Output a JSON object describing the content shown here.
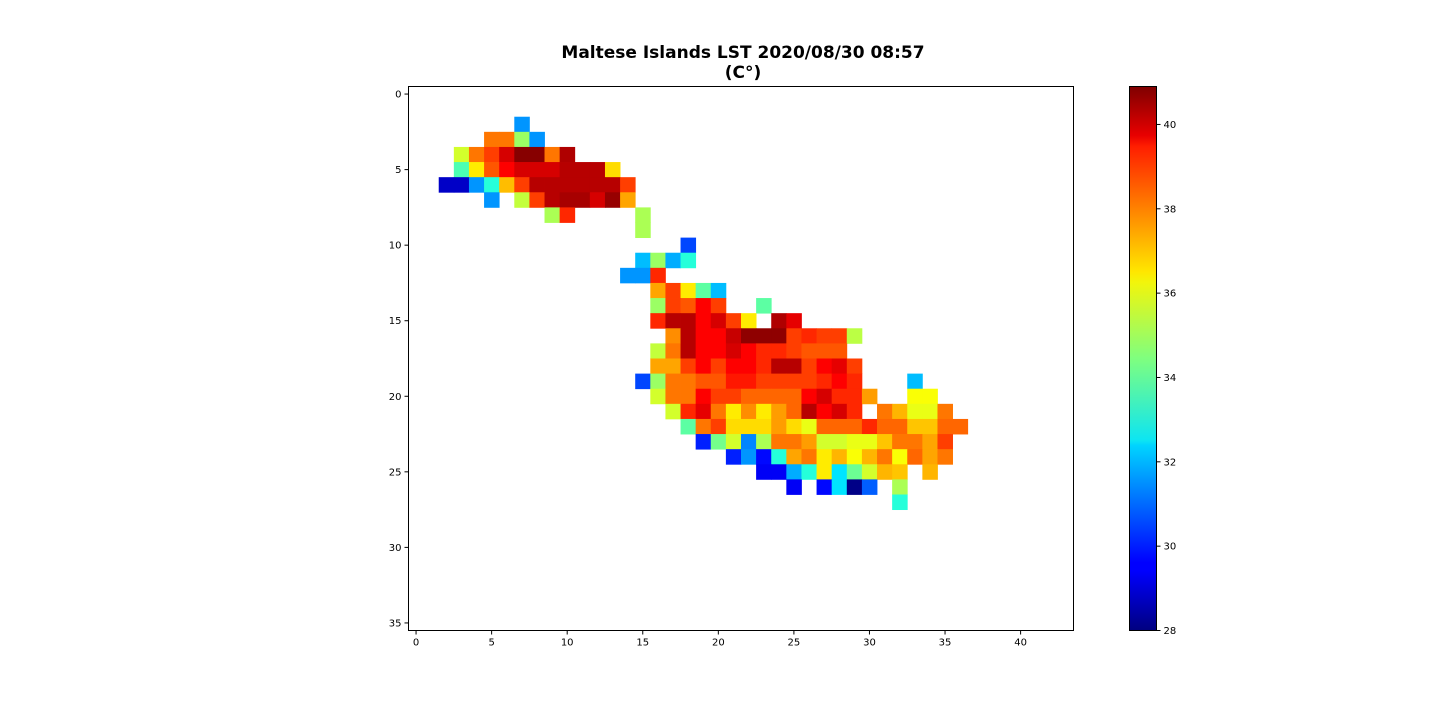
{
  "chart_data": {
    "type": "heatmap",
    "title_line1": "Maltese Islands LST 2020/08/30 08:57",
    "title_line2": "(C°)",
    "xlabel": "",
    "ylabel": "",
    "xlim": [
      -0.5,
      43.5
    ],
    "ylim": [
      35.5,
      -0.5
    ],
    "x_ticks": [
      0,
      5,
      10,
      15,
      20,
      25,
      30,
      35,
      40
    ],
    "y_ticks": [
      0,
      5,
      10,
      15,
      20,
      25,
      30,
      35
    ],
    "colormap": "jet",
    "colorbar": {
      "min": 28.0,
      "max": 40.9,
      "ticks": [
        28,
        30,
        32,
        34,
        36,
        38,
        40
      ]
    },
    "grid_rows": [
      {
        "y": 2,
        "x0": 7,
        "values": [
          31.5
        ]
      },
      {
        "y": 3,
        "x0": 5,
        "values": [
          37.8,
          37.8,
          34.8,
          31.5
        ]
      },
      {
        "y": 4,
        "x0": 3,
        "values": [
          35.5,
          37.8,
          38.5,
          39.8,
          40.8,
          40.8,
          37.8,
          40.3
        ]
      },
      {
        "y": 5,
        "x0": 3,
        "values": [
          33.8,
          36.3,
          38.2,
          39.3,
          39.8,
          39.8,
          39.8,
          40.2,
          40.2,
          40.2,
          36.5
        ]
      },
      {
        "y": 6,
        "x0": 2,
        "values": [
          28.9,
          28.9,
          31.5,
          33.3,
          36.9,
          38.5,
          40.2,
          40.2,
          40.2,
          40.2,
          40.2,
          40.2,
          38.5
        ]
      },
      {
        "y": 7,
        "x0": 5,
        "values": [
          31.5,
          null,
          35.3,
          38.5,
          40.2,
          40.4,
          40.4,
          39.8,
          40.6,
          37.2
        ]
      },
      {
        "y": 8,
        "x0": 9,
        "values": [
          35.0,
          38.8
        ]
      },
      {
        "y": 8,
        "x0": 15,
        "values": [
          35.0
        ]
      },
      {
        "y": 9,
        "x0": 15,
        "values": [
          35.0
        ]
      },
      {
        "y": 10,
        "x0": 18,
        "values": [
          30.5
        ]
      },
      {
        "y": 11,
        "x0": 15,
        "values": [
          32.0,
          34.8,
          31.8,
          33.3
        ]
      },
      {
        "y": 12,
        "x0": 14,
        "values": [
          31.5,
          31.5,
          38.8
        ]
      },
      {
        "y": 13,
        "x0": 16,
        "values": [
          37.2,
          38.5,
          36.3,
          34.0,
          32.0
        ]
      },
      {
        "y": 14,
        "x0": 16,
        "values": [
          34.8,
          38.5,
          38.2,
          39.3,
          38.5
        ]
      },
      {
        "y": 14,
        "x0": 23,
        "values": [
          34.0
        ]
      },
      {
        "y": 15,
        "x0": 16,
        "values": [
          38.8,
          40.2,
          40.2,
          39.3,
          39.8,
          38.5,
          36.3,
          null,
          40.3,
          39.6
        ]
      },
      {
        "y": 16,
        "x0": 17,
        "values": [
          37.5,
          40.2,
          39.3,
          39.3,
          40.0,
          40.7,
          40.7,
          40.7,
          38.5,
          38.8,
          38.5,
          38.5,
          35.2
        ]
      },
      {
        "y": 17,
        "x0": 16,
        "values": [
          35.3,
          37.8,
          40.2,
          39.3,
          39.3,
          39.8,
          39.3,
          38.8,
          38.8,
          38.5,
          38.2,
          38.2,
          38.2
        ]
      },
      {
        "y": 18,
        "x0": 16,
        "values": [
          37.2,
          37.2,
          38.5,
          39.3,
          38.5,
          39.3,
          39.3,
          38.8,
          40.2,
          40.2,
          38.5,
          39.3,
          39.6,
          38.5
        ]
      },
      {
        "y": 19,
        "x0": 15,
        "values": [
          30.5,
          34.8,
          37.8,
          37.8,
          38.2,
          38.2,
          39.0,
          39.0,
          38.5,
          38.5,
          38.5,
          38.5,
          38.8,
          39.3,
          38.8
        ]
      },
      {
        "y": 19,
        "x0": 33,
        "values": [
          32.0
        ]
      },
      {
        "y": 20,
        "x0": 16,
        "values": [
          35.5,
          37.8,
          37.8,
          39.3,
          38.5,
          38.5,
          38.0,
          38.0,
          38.0,
          38.0,
          39.3,
          39.8,
          38.8,
          38.8,
          37.3
        ]
      },
      {
        "y": 20,
        "x0": 33,
        "values": [
          36.0,
          36.0
        ]
      },
      {
        "y": 21,
        "x0": 17,
        "values": [
          35.5,
          38.8,
          39.6,
          37.8,
          36.3,
          37.5,
          36.3,
          37.3,
          38.0,
          40.2,
          39.3,
          39.8,
          38.8,
          null,
          37.8,
          37.0,
          35.8,
          35.8,
          37.8
        ]
      },
      {
        "y": 22,
        "x0": 18,
        "values": [
          34.0,
          37.8,
          38.5,
          36.5,
          36.5,
          36.5,
          37.3,
          36.5,
          35.8,
          38.0,
          38.0,
          38.0,
          38.8,
          38.0,
          38.0,
          36.8,
          36.8,
          38.0,
          38.0
        ]
      },
      {
        "y": 23,
        "x0": 19,
        "values": [
          30.0,
          34.3,
          35.5,
          31.3,
          35.0,
          37.8,
          37.8,
          37.3,
          35.5,
          35.5,
          35.8,
          35.8,
          36.8,
          37.8,
          37.8,
          37.2,
          38.5
        ]
      },
      {
        "y": 24,
        "x0": 21,
        "values": [
          30.0,
          31.5,
          29.7,
          33.3,
          37.2,
          37.8,
          36.3,
          37.0,
          36.0,
          37.0,
          37.8,
          36.0,
          38.0,
          37.2,
          37.8
        ]
      },
      {
        "y": 25,
        "x0": 23,
        "values": [
          29.5,
          29.5,
          31.8,
          33.3,
          36.3,
          32.5,
          34.2,
          35.5,
          37.0,
          36.8,
          null,
          37.0
        ]
      },
      {
        "y": 26,
        "x0": 25,
        "values": [
          29.5,
          null,
          29.7,
          32.5,
          28.1,
          30.8
        ]
      },
      {
        "y": 26,
        "x0": 32,
        "values": [
          35.0
        ]
      },
      {
        "y": 27,
        "x0": 32,
        "values": [
          33.3
        ]
      }
    ]
  }
}
